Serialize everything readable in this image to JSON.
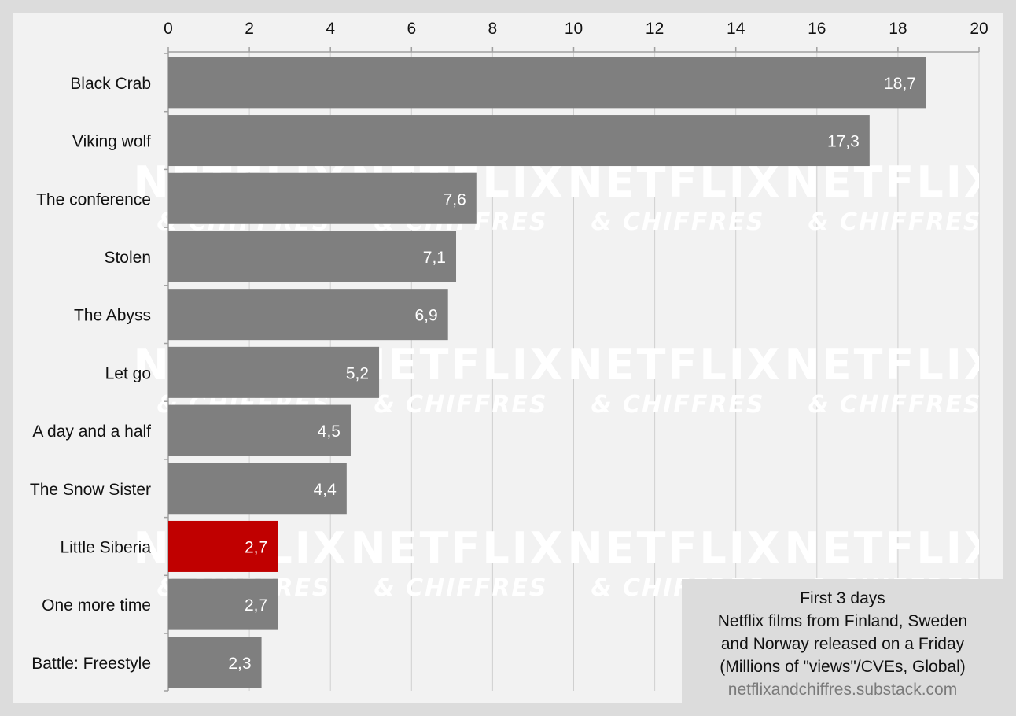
{
  "chart_data": {
    "type": "bar",
    "orientation": "horizontal",
    "categories": [
      "Black Crab",
      "Viking wolf",
      "The conference",
      "Stolen",
      "The Abyss",
      "Let go",
      "A day and a half",
      "The Snow Sister",
      "Little Siberia",
      "One more time",
      "Battle: Freestyle"
    ],
    "values": [
      18.7,
      17.3,
      7.6,
      7.1,
      6.9,
      5.2,
      4.5,
      4.4,
      2.7,
      2.7,
      2.3
    ],
    "value_labels": [
      "18,7",
      "17,3",
      "7,6",
      "7,1",
      "6,9",
      "5,2",
      "4,5",
      "4,4",
      "2,7",
      "2,7",
      "2,3"
    ],
    "highlight": "Little Siberia",
    "xlim": [
      0,
      20
    ],
    "xticks": [
      0,
      2,
      4,
      6,
      8,
      10,
      12,
      14,
      16,
      18,
      20
    ],
    "x_axis_position": "top",
    "grid": true,
    "colors": {
      "bar": "#7f7f7f",
      "highlight": "#c00000",
      "grid": "#d0d0d0",
      "background": "#f2f2f2",
      "frame": "#dcdcdc"
    }
  },
  "info_box": {
    "lines": [
      "First 3 days",
      "Netflix films from Finland, Sweden",
      "and Norway released on a Friday",
      "(Millions of \"views\"/CVEs, Global)"
    ],
    "source": "netflixandchiffres.substack.com"
  },
  "watermark": {
    "line1": "NETFLIX",
    "line2": "& CHIFFRES"
  }
}
